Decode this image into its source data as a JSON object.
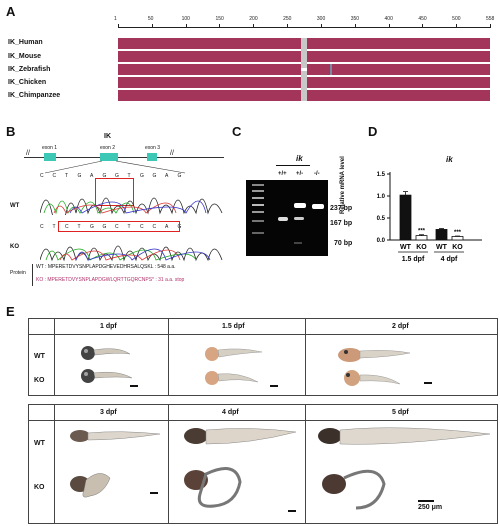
{
  "panels": {
    "A": "A",
    "B": "B",
    "C": "C",
    "D": "D",
    "E": "E"
  },
  "panel_a": {
    "ticks": [
      "1",
      "50",
      "100",
      "150",
      "200",
      "250",
      "300",
      "350",
      "400",
      "450",
      "500",
      "558"
    ],
    "species": [
      "IK_Human",
      "IK_Mouse",
      "IK_Zebrafish",
      "IK_Chicken",
      "IK_Chimpanzee"
    ],
    "colors": {
      "bar": "#a3345a",
      "gap": "#c8c8c8"
    }
  },
  "panel_b": {
    "gene": "IK",
    "exons": [
      "exon 1",
      "exon 2",
      "exon 3"
    ],
    "wt_label": "WT",
    "ko_label": "KO",
    "wt_seq": [
      "C",
      "C",
      "T",
      "G",
      "A",
      "G",
      "G",
      "T",
      "G",
      "G",
      "A",
      "G"
    ],
    "ko_seq": [
      "C",
      "T",
      "C",
      "T",
      "G",
      "G",
      "C",
      "T",
      "C",
      "C",
      "A",
      "G"
    ],
    "protein_label": "Protein",
    "wt_protein": "WT : MPERETDVYSNPLAPDGHEVEDHRSALQSKL : 548 a.a.",
    "ko_protein": "KO : MPERETDVYSNPLAPDGWLQRTTGQRCNPS* : 31 a.a. stop"
  },
  "panel_c": {
    "title": "ik",
    "lanes": [
      "+/+",
      "+/-",
      "-/-"
    ],
    "sizes": [
      "237 bp",
      "167 bp",
      "70 bp"
    ]
  },
  "panel_d": {
    "chart_data": {
      "type": "bar",
      "title": "ik",
      "ylabel": "Relative mRNA level",
      "categories": [
        "WT",
        "KO",
        "WT",
        "KO"
      ],
      "groups": [
        "1.5 dpf",
        "4 dpf"
      ],
      "values": [
        1.02,
        0.1,
        0.24,
        0.08
      ],
      "errors": [
        0.08,
        0.02,
        0.02,
        0.01
      ],
      "significance": [
        "",
        "***",
        "",
        "***"
      ],
      "ylim": [
        0,
        1.5
      ],
      "yticks": [
        "0.0",
        "0.5",
        "1.0",
        "1.5"
      ],
      "colors": {
        "WT": "#111111",
        "KO": "#ffffff"
      }
    }
  },
  "panel_e": {
    "row_labels": [
      "WT",
      "KO"
    ],
    "top_stages": [
      "1 dpf",
      "1.5 dpf",
      "2 dpf"
    ],
    "bottom_stages": [
      "3 dpf",
      "4 dpf",
      "5 dpf"
    ],
    "scale": "250 μm"
  }
}
